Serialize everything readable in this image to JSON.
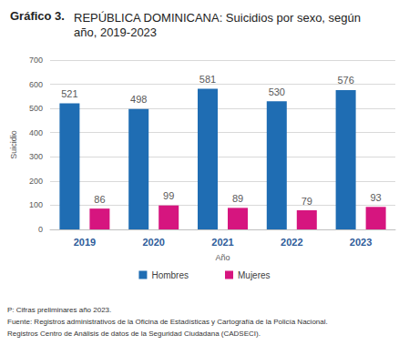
{
  "chart_data": {
    "type": "bar",
    "title": "Gráfico 3.",
    "subtitle": "REPÚBLICA DOMINICANA: Suicidios por sexo, según año, 2019-2023",
    "x_label": "Año",
    "y_label": "Suicidio",
    "categories": [
      "2019",
      "2020",
      "2021",
      "2022",
      "2023"
    ],
    "series": [
      {
        "name": "Hombres",
        "color": "#1f6db3",
        "values": [
          521,
          498,
          581,
          530,
          576
        ]
      },
      {
        "name": "Mujeres",
        "color": "#d6157f",
        "values": [
          86,
          99,
          89,
          79,
          93
        ]
      }
    ],
    "ylim": [
      0,
      700
    ],
    "yticks": [
      0,
      100,
      200,
      300,
      400,
      500,
      600,
      700
    ],
    "grid": true,
    "data_labels": true,
    "legend": "bottom",
    "annotations": [
      "P: Cifras preliminares año 2023.",
      "Fuente: Registros administrativos de la Oficina de Estadísticas y Cartografía de la Policía Nacional.",
      "Registros Centro de Análisis de datos de la Seguridad Ciudadana (CADSECI)."
    ]
  }
}
